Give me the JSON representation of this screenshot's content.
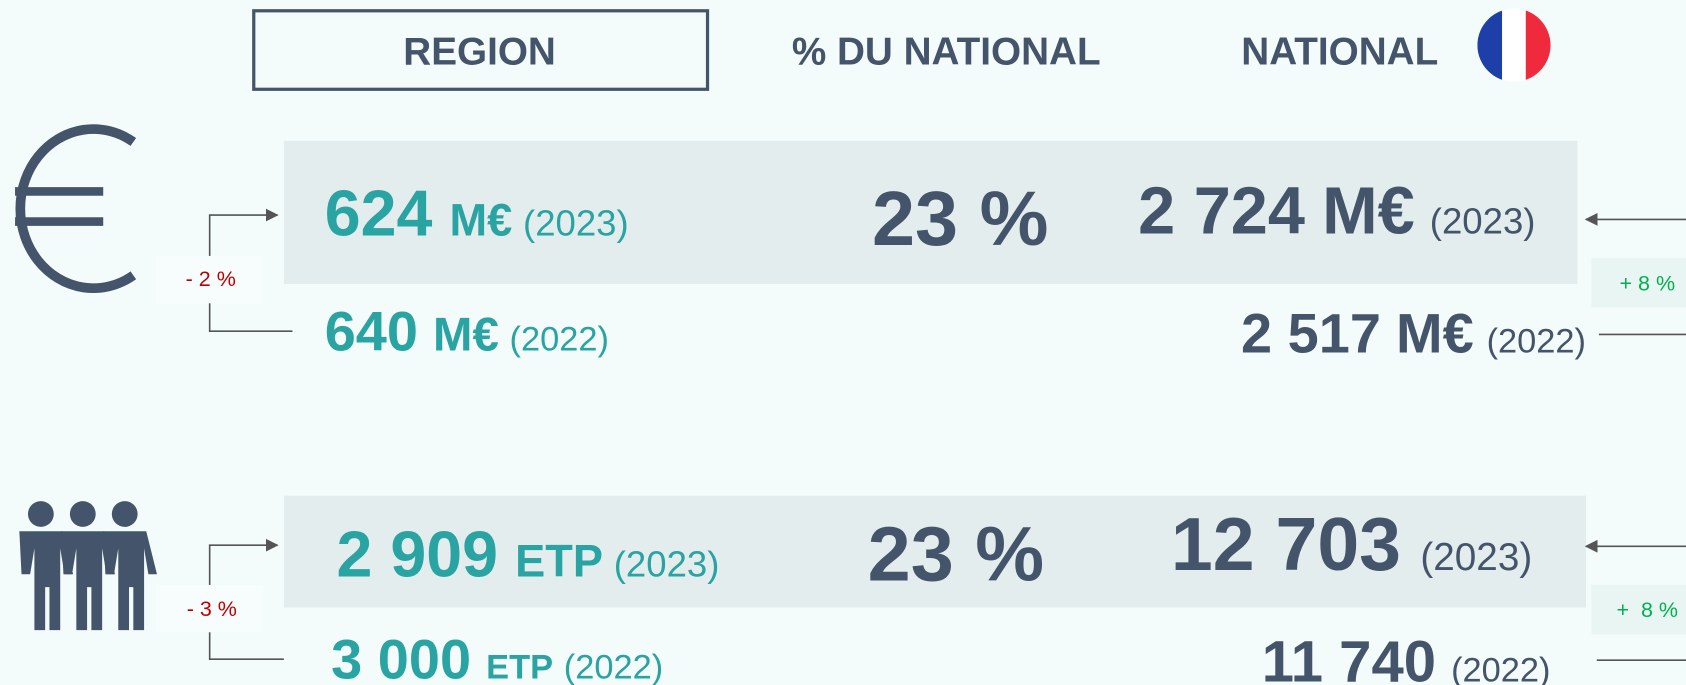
{
  "header": {
    "region": "REGION",
    "percent": "% DU NATIONAL",
    "national": "NATIONAL"
  },
  "rows": [
    {
      "region_2023": {
        "value": "624",
        "unit": "M€",
        "year": "(2023)"
      },
      "region_2022": {
        "value": "640",
        "unit": "M€",
        "year": "(2022)"
      },
      "region_change": "- 2 %",
      "percent": "23 %",
      "national_2023": {
        "value": "2 724",
        "unit": "M€",
        "year": "(2023)"
      },
      "national_2022": {
        "value": "2 517",
        "unit": "M€",
        "year": "(2022)"
      },
      "national_change": "+ 8 %"
    },
    {
      "region_2023": {
        "value": "2 909",
        "unit": "ETP",
        "year": "(2023)"
      },
      "region_2022": {
        "value": "3 000",
        "unit": "ETP",
        "year": "(2022)"
      },
      "region_change": "- 3 %",
      "percent": "23 %",
      "national_2023": {
        "value": "12 703",
        "year": "(2023)"
      },
      "national_2022": {
        "value": "11 740",
        "year": "(2022)"
      },
      "national_change": "+  8 %"
    }
  ]
}
